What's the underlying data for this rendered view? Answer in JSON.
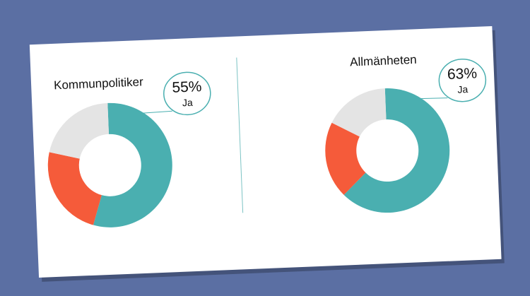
{
  "chart_data": [
    {
      "type": "donut",
      "title": "Kommunpolitiker",
      "categories": [
        "Ja",
        null,
        null
      ],
      "values": [
        55,
        24,
        21
      ],
      "value_labels": [
        "55%",
        null,
        null
      ],
      "colors": [
        "#4aafb0",
        "#f55b3a",
        "#e4e4e4"
      ]
    },
    {
      "type": "donut",
      "title": "Allmänheten",
      "categories": [
        "Ja",
        null,
        null
      ],
      "values": [
        63,
        20,
        17
      ],
      "value_labels": [
        "63%",
        null,
        null
      ],
      "colors": [
        "#4aafb0",
        "#f55b3a",
        "#e4e4e4"
      ]
    }
  ]
}
